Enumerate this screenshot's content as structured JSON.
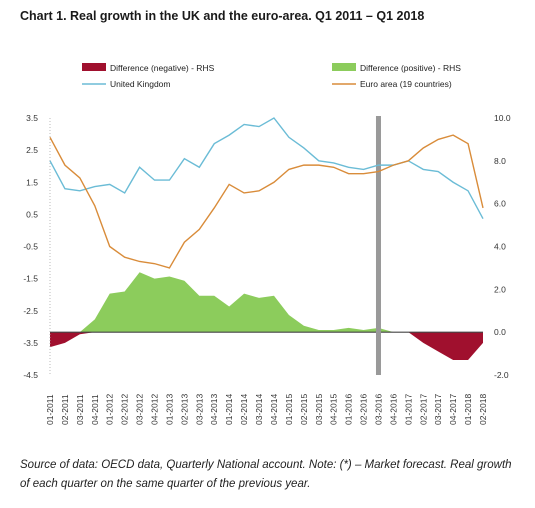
{
  "title": "Chart 1. Real growth in the UK and the euro-area. Q1 2011 – Q1 2018",
  "caption": "Source of data: OECD data, Quarterly National account. Note: (*) – Market forecast. Real growth of each quarter on the same quarter of the previous year.",
  "colors": {
    "uk": "#6bbcd6",
    "ea": "#d98c3a",
    "diff_pos": "#8ccc5c",
    "diff_neg": "#a0102e",
    "forecast_bar": "#999999"
  },
  "chart_data": {
    "type": "line",
    "categories": [
      "01-2011",
      "02-2011",
      "03-2011",
      "04-2011",
      "01-2012",
      "02-2012",
      "03-2012",
      "04-2012",
      "01-2013",
      "02-2013",
      "03-2013",
      "04-2013",
      "01-2014",
      "02-2014",
      "03-2014",
      "04-2014",
      "01-2015",
      "02-2015",
      "03-2015",
      "04-2015",
      "01-2016",
      "02-2016",
      "03-2016",
      "04-2016",
      "01-2017",
      "02-2017",
      "03-2017",
      "04-2017",
      "01-2018",
      "02-2018"
    ],
    "left_axis": {
      "ticks": [
        "3.5",
        "2.5",
        "1.5",
        "0.5",
        "-0.5",
        "-1.5",
        "-2.5",
        "-3.5",
        "-4.5"
      ],
      "ylim": [
        -4.5,
        3.5
      ]
    },
    "right_axis": {
      "ticks": [
        "10.0",
        "8.0",
        "6.0",
        "4.0",
        "2.0",
        "0.0",
        "-2.0"
      ],
      "ylim": [
        -2.0,
        10.0
      ]
    },
    "forecast_category": "03-2016",
    "legend": {
      "diff_neg": "Difference (negative) - RHS",
      "diff_pos": "Difference (positive) - RHS",
      "uk": "United Kingdom",
      "ea": "Euro area (19 countries)"
    },
    "series": [
      {
        "name": "United Kingdom",
        "axis": "right",
        "values": [
          8.0,
          6.7,
          6.6,
          6.8,
          6.9,
          6.5,
          7.7,
          7.1,
          7.1,
          8.1,
          7.7,
          8.8,
          9.2,
          9.7,
          9.6,
          10.0,
          9.1,
          8.6,
          8.0,
          7.9,
          7.7,
          7.6,
          7.8,
          7.8,
          8.0,
          7.6,
          7.5,
          7.0,
          6.6,
          5.3
        ]
      },
      {
        "name": "Euro area (19 countries)",
        "axis": "right",
        "values": [
          9.1,
          7.8,
          7.2,
          5.9,
          4.0,
          3.5,
          3.3,
          3.2,
          3.0,
          4.2,
          4.8,
          5.8,
          6.9,
          6.5,
          6.6,
          7.0,
          7.6,
          7.8,
          7.8,
          7.7,
          7.4,
          7.4,
          7.5,
          7.8,
          8.0,
          8.6,
          9.0,
          9.2,
          8.8,
          5.8
        ]
      },
      {
        "name": "Difference - RHS",
        "axis": "right",
        "values": [
          -0.7,
          -0.5,
          -0.1,
          0.6,
          1.8,
          1.9,
          2.8,
          2.5,
          2.6,
          2.4,
          1.7,
          1.7,
          1.2,
          1.8,
          1.6,
          1.7,
          0.8,
          0.3,
          0.1,
          0.1,
          0.2,
          0.1,
          0.2,
          0.0,
          0.0,
          -0.5,
          -0.9,
          -1.3,
          -1.3,
          -0.5
        ]
      }
    ]
  }
}
